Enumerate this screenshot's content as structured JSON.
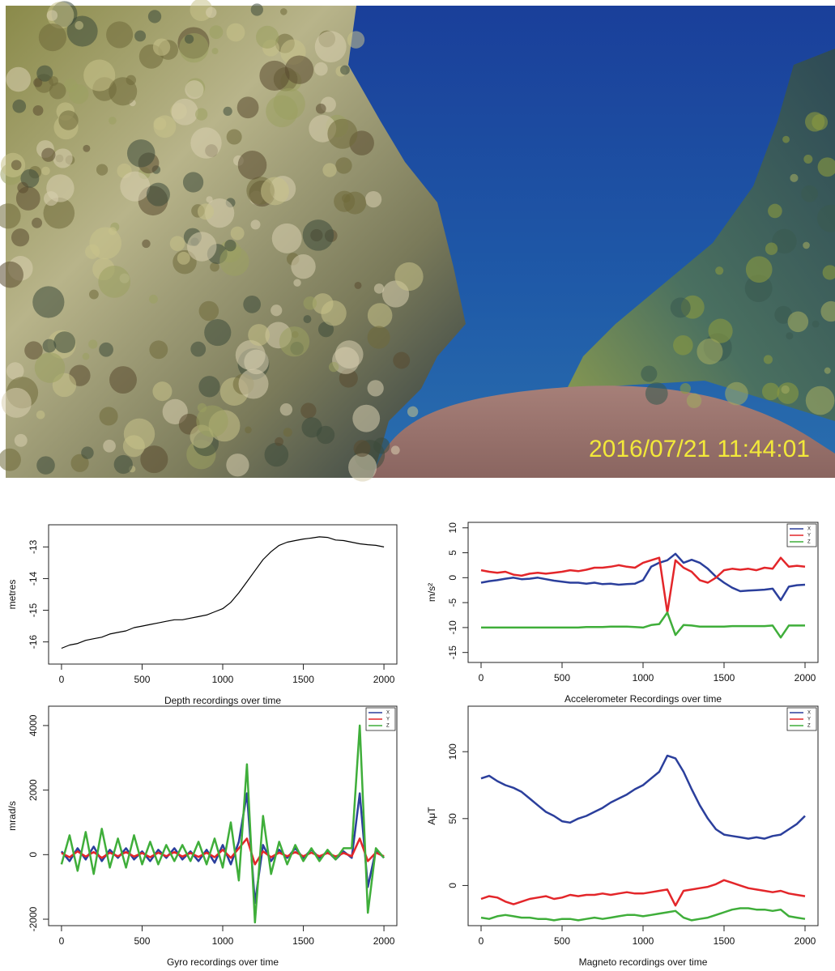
{
  "photo": {
    "timestamp": "2016/07/21 11:44:01"
  },
  "chart_data": [
    {
      "type": "line",
      "xlabel": "Depth recordings over time",
      "ylabel": "metres",
      "x": [
        0,
        50,
        100,
        150,
        200,
        250,
        300,
        350,
        400,
        450,
        500,
        550,
        600,
        650,
        700,
        750,
        800,
        850,
        900,
        950,
        1000,
        1050,
        1100,
        1150,
        1200,
        1250,
        1300,
        1350,
        1400,
        1450,
        1500,
        1550,
        1600,
        1650,
        1700,
        1750,
        1800,
        1850,
        1900,
        1950,
        2000
      ],
      "values": [
        -16.2,
        -16.1,
        -16.05,
        -15.95,
        -15.9,
        -15.85,
        -15.75,
        -15.7,
        -15.65,
        -15.55,
        -15.5,
        -15.45,
        -15.4,
        -15.35,
        -15.3,
        -15.3,
        -15.25,
        -15.2,
        -15.15,
        -15.05,
        -14.95,
        -14.75,
        -14.45,
        -14.1,
        -13.75,
        -13.4,
        -13.15,
        -12.95,
        -12.85,
        -12.8,
        -12.75,
        -12.72,
        -12.68,
        -12.7,
        -12.78,
        -12.8,
        -12.85,
        -12.9,
        -12.93,
        -12.95,
        -13.0
      ],
      "color": "#000000",
      "xlim": [
        -80,
        2080
      ],
      "xticks": [
        0,
        500,
        1000,
        1500,
        2000
      ],
      "ylim": [
        -16.7,
        -12.3
      ],
      "yticks": [
        -16,
        -15,
        -14,
        -13
      ]
    },
    {
      "type": "line",
      "xlabel": "Accelerometer Recordings over time",
      "ylabel": "m/s²",
      "x": [
        0,
        50,
        100,
        150,
        200,
        250,
        300,
        350,
        400,
        450,
        500,
        550,
        600,
        650,
        700,
        750,
        800,
        850,
        900,
        950,
        1000,
        1050,
        1100,
        1150,
        1200,
        1250,
        1300,
        1350,
        1400,
        1450,
        1500,
        1550,
        1600,
        1650,
        1700,
        1750,
        1800,
        1850,
        1900,
        1950,
        2000
      ],
      "series": [
        {
          "name": "X",
          "color": "#2b3f9c",
          "values": [
            -1,
            -0.7,
            -0.5,
            -0.2,
            0,
            -0.3,
            -0.2,
            0,
            -0.3,
            -0.6,
            -0.8,
            -1,
            -1,
            -1.2,
            -1,
            -1.3,
            -1.2,
            -1.4,
            -1.3,
            -1.2,
            -0.5,
            2.2,
            3,
            3.5,
            4.8,
            3,
            3.6,
            3,
            1.8,
            0.2,
            -1,
            -2,
            -2.7,
            -2.6,
            -2.5,
            -2.4,
            -2.2,
            -4.5,
            -1.8,
            -1.5,
            -1.4
          ]
        },
        {
          "name": "Y",
          "color": "#e3262a",
          "values": [
            1.5,
            1.2,
            1,
            1.2,
            0.6,
            0.4,
            0.8,
            1,
            0.8,
            1,
            1.2,
            1.5,
            1.3,
            1.6,
            2,
            2,
            2.2,
            2.5,
            2.2,
            2,
            3,
            3.5,
            4,
            -7,
            3.5,
            2,
            1.2,
            -0.5,
            -1,
            0,
            1.5,
            1.8,
            1.6,
            1.8,
            1.5,
            2,
            1.8,
            4,
            2.2,
            2.4,
            2.2
          ]
        },
        {
          "name": "Z",
          "color": "#3fae3a",
          "values": [
            -10,
            -10,
            -10,
            -10,
            -10,
            -10,
            -10,
            -10,
            -10,
            -10,
            -10,
            -10,
            -10,
            -9.9,
            -9.9,
            -9.9,
            -9.8,
            -9.8,
            -9.8,
            -9.9,
            -10,
            -9.5,
            -9.3,
            -7,
            -11.5,
            -9.5,
            -9.6,
            -9.8,
            -9.8,
            -9.8,
            -9.8,
            -9.7,
            -9.7,
            -9.7,
            -9.7,
            -9.7,
            -9.6,
            -12,
            -9.6,
            -9.6,
            -9.6
          ]
        }
      ],
      "xlim": [
        -80,
        2080
      ],
      "xticks": [
        0,
        500,
        1000,
        1500,
        2000
      ],
      "ylim": [
        -17,
        11.1
      ],
      "yticks": [
        -15,
        -10,
        -5,
        0,
        5,
        10
      ],
      "legend": "top-right"
    },
    {
      "type": "line",
      "xlabel": "Gyro recordings over time",
      "ylabel": "mrad/s",
      "x": [
        0,
        50,
        100,
        150,
        200,
        250,
        300,
        350,
        400,
        450,
        500,
        550,
        600,
        650,
        700,
        750,
        800,
        850,
        900,
        950,
        1000,
        1050,
        1100,
        1150,
        1200,
        1250,
        1300,
        1350,
        1400,
        1450,
        1500,
        1550,
        1600,
        1650,
        1700,
        1750,
        1800,
        1850,
        1900,
        1950,
        2000
      ],
      "series": [
        {
          "name": "X",
          "color": "#2b3f9c",
          "values": [
            100,
            -200,
            200,
            -150,
            250,
            -200,
            150,
            -100,
            200,
            -150,
            100,
            -200,
            150,
            -100,
            200,
            -150,
            100,
            -200,
            150,
            -250,
            300,
            -300,
            400,
            1900,
            -1500,
            300,
            -200,
            150,
            -100,
            200,
            -100,
            150,
            -100,
            100,
            -150,
            100,
            -100,
            1900,
            -1000,
            150,
            -100
          ]
        },
        {
          "name": "Y",
          "color": "#e3262a",
          "values": [
            50,
            -80,
            100,
            -60,
            80,
            -100,
            60,
            -50,
            80,
            -60,
            50,
            -80,
            60,
            -50,
            80,
            -60,
            50,
            -70,
            60,
            -80,
            150,
            -100,
            200,
            500,
            -300,
            100,
            -80,
            60,
            -50,
            80,
            -50,
            60,
            -50,
            50,
            -60,
            50,
            -50,
            500,
            -200,
            60,
            -50
          ]
        },
        {
          "name": "Z",
          "color": "#3fae3a",
          "values": [
            -300,
            600,
            -500,
            700,
            -600,
            800,
            -400,
            500,
            -400,
            600,
            -300,
            400,
            -300,
            300,
            -200,
            300,
            -200,
            400,
            -300,
            500,
            -400,
            1000,
            -800,
            2800,
            -2100,
            1200,
            -600,
            400,
            -300,
            300,
            -200,
            200,
            -200,
            150,
            -150,
            200,
            200,
            4000,
            -1800,
            200,
            -100
          ]
        }
      ],
      "xlim": [
        -80,
        2080
      ],
      "xticks": [
        0,
        500,
        1000,
        1500,
        2000
      ],
      "ylim": [
        -2200,
        4600
      ],
      "yticks": [
        -2000,
        0,
        2000,
        4000
      ],
      "legend": "top-right"
    },
    {
      "type": "line",
      "xlabel": "Magneto recordings over time",
      "ylabel": "AμT",
      "x": [
        0,
        50,
        100,
        150,
        200,
        250,
        300,
        350,
        400,
        450,
        500,
        550,
        600,
        650,
        700,
        750,
        800,
        850,
        900,
        950,
        1000,
        1050,
        1100,
        1150,
        1200,
        1250,
        1300,
        1350,
        1400,
        1450,
        1500,
        1550,
        1600,
        1650,
        1700,
        1750,
        1800,
        1850,
        1900,
        1950,
        2000
      ],
      "series": [
        {
          "name": "X",
          "color": "#2b3f9c",
          "values": [
            80,
            82,
            78,
            75,
            73,
            70,
            65,
            60,
            55,
            52,
            48,
            47,
            50,
            52,
            55,
            58,
            62,
            65,
            68,
            72,
            75,
            80,
            85,
            97,
            95,
            85,
            72,
            60,
            50,
            42,
            38,
            37,
            36,
            35,
            36,
            35,
            37,
            38,
            42,
            46,
            52
          ]
        },
        {
          "name": "Y",
          "color": "#e3262a",
          "values": [
            -10,
            -8,
            -9,
            -12,
            -14,
            -12,
            -10,
            -9,
            -8,
            -10,
            -9,
            -7,
            -8,
            -7,
            -7,
            -6,
            -7,
            -6,
            -5,
            -6,
            -6,
            -5,
            -4,
            -3,
            -15,
            -4,
            -3,
            -2,
            -1,
            1,
            4,
            2,
            0,
            -2,
            -3,
            -4,
            -5,
            -4,
            -6,
            -7,
            -8
          ]
        },
        {
          "name": "Z",
          "color": "#3fae3a",
          "values": [
            -24,
            -25,
            -23,
            -22,
            -23,
            -24,
            -24,
            -25,
            -25,
            -26,
            -25,
            -25,
            -26,
            -25,
            -24,
            -25,
            -24,
            -23,
            -22,
            -22,
            -23,
            -22,
            -21,
            -20,
            -19,
            -24,
            -26,
            -25,
            -24,
            -22,
            -20,
            -18,
            -17,
            -17,
            -18,
            -18,
            -19,
            -18,
            -23,
            -24,
            -25
          ]
        }
      ],
      "xlim": [
        -80,
        2080
      ],
      "xticks": [
        0,
        500,
        1000,
        1500,
        2000
      ],
      "ylim": [
        -30,
        134
      ],
      "yticks": [
        0,
        50,
        100
      ],
      "legend": "top-right"
    }
  ]
}
